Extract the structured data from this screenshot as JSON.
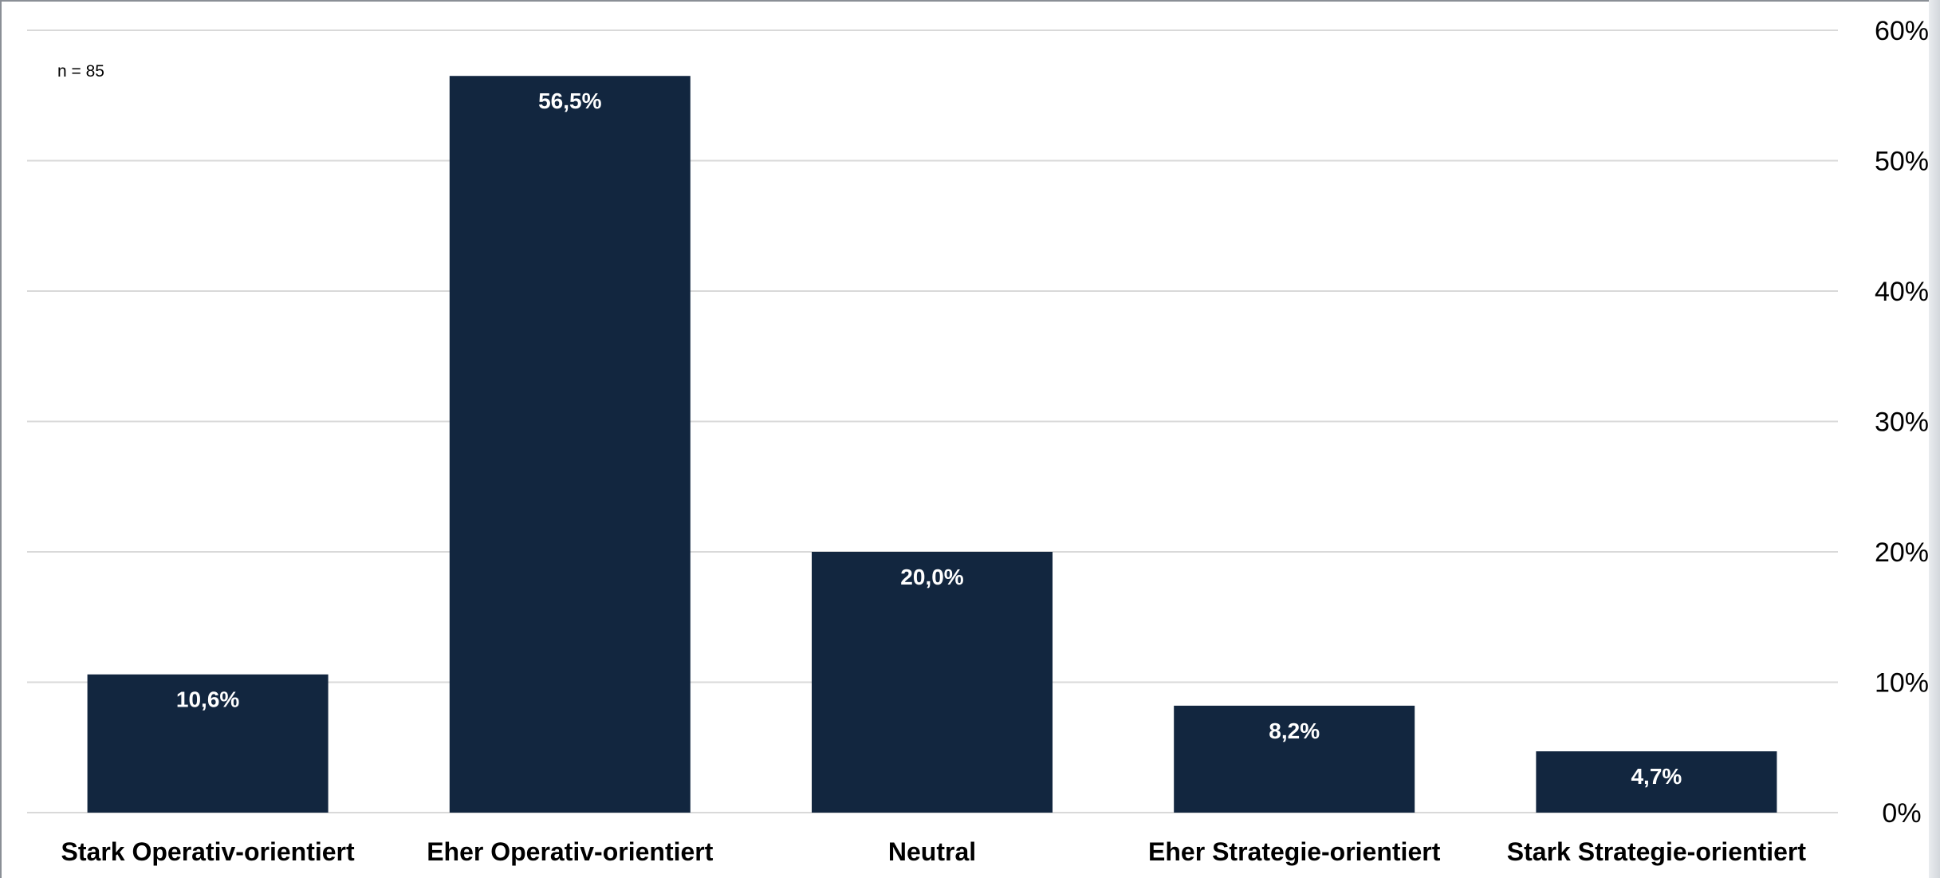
{
  "chart_data": {
    "type": "bar",
    "annotation": "n = 85",
    "categories": [
      "Stark Operativ-orientiert",
      "Eher Operativ-orientiert",
      "Neutral",
      "Eher Strategie-orientiert",
      "Stark Strategie-orientiert"
    ],
    "values": [
      10.6,
      56.5,
      20.0,
      8.2,
      4.7
    ],
    "data_labels": [
      "10,6%",
      "56,5%",
      "20,0%",
      "8,2%",
      "4,7%"
    ],
    "y_ticks": [
      0,
      10,
      20,
      30,
      40,
      50,
      60
    ],
    "y_tick_labels": [
      "0%",
      "10%",
      "20%",
      "30%",
      "40%",
      "50%",
      "60%"
    ],
    "ylim": [
      0,
      60
    ],
    "y_axis_position": "right",
    "grid": true,
    "legend": "none",
    "bar_color": "#12263f",
    "grid_color": "#d9d9d9",
    "label_color_inside": "#ffffff"
  }
}
